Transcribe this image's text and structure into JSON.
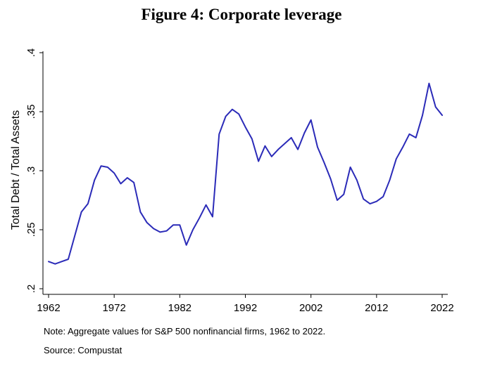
{
  "chart_data": {
    "type": "line",
    "title": "Figure 4: Corporate leverage",
    "xlabel": "",
    "ylabel": "Total Debt / Total Assets",
    "xlim": [
      1962,
      2022
    ],
    "ylim": [
      0.2,
      0.4
    ],
    "x_ticks": [
      1962,
      1972,
      1982,
      1992,
      2002,
      2012,
      2022
    ],
    "y_ticks": [
      0.2,
      0.25,
      0.3,
      0.35,
      0.4
    ],
    "y_tick_labels": [
      ".2",
      ".25",
      ".3",
      ".35",
      ".4"
    ],
    "grid": false,
    "series": [
      {
        "color": "#2b2bb8",
        "x": [
          1962,
          1963,
          1964,
          1965,
          1966,
          1967,
          1968,
          1969,
          1970,
          1971,
          1972,
          1973,
          1974,
          1975,
          1976,
          1977,
          1978,
          1979,
          1980,
          1981,
          1982,
          1983,
          1984,
          1985,
          1986,
          1987,
          1988,
          1989,
          1990,
          1991,
          1992,
          1993,
          1994,
          1995,
          1996,
          1997,
          1998,
          1999,
          2000,
          2001,
          2002,
          2003,
          2004,
          2005,
          2006,
          2007,
          2008,
          2009,
          2010,
          2011,
          2012,
          2013,
          2014,
          2015,
          2016,
          2017,
          2018,
          2019,
          2020,
          2021,
          2022
        ],
        "values": [
          0.223,
          0.221,
          0.223,
          0.225,
          0.245,
          0.265,
          0.272,
          0.292,
          0.304,
          0.303,
          0.298,
          0.289,
          0.294,
          0.29,
          0.265,
          0.256,
          0.251,
          0.248,
          0.249,
          0.254,
          0.254,
          0.237,
          0.25,
          0.26,
          0.271,
          0.261,
          0.331,
          0.346,
          0.352,
          0.348,
          0.337,
          0.327,
          0.308,
          0.321,
          0.312,
          0.318,
          0.323,
          0.328,
          0.318,
          0.332,
          0.343,
          0.32,
          0.307,
          0.293,
          0.275,
          0.28,
          0.303,
          0.292,
          0.276,
          0.272,
          0.274,
          0.278,
          0.292,
          0.31,
          0.32,
          0.331,
          0.328,
          0.347,
          0.374,
          0.354,
          0.347
        ]
      }
    ],
    "notes": [
      "Note: Aggregate values for S&P 500 nonfinancial firms, 1962 to 2022.",
      "Source: Compustat"
    ]
  }
}
